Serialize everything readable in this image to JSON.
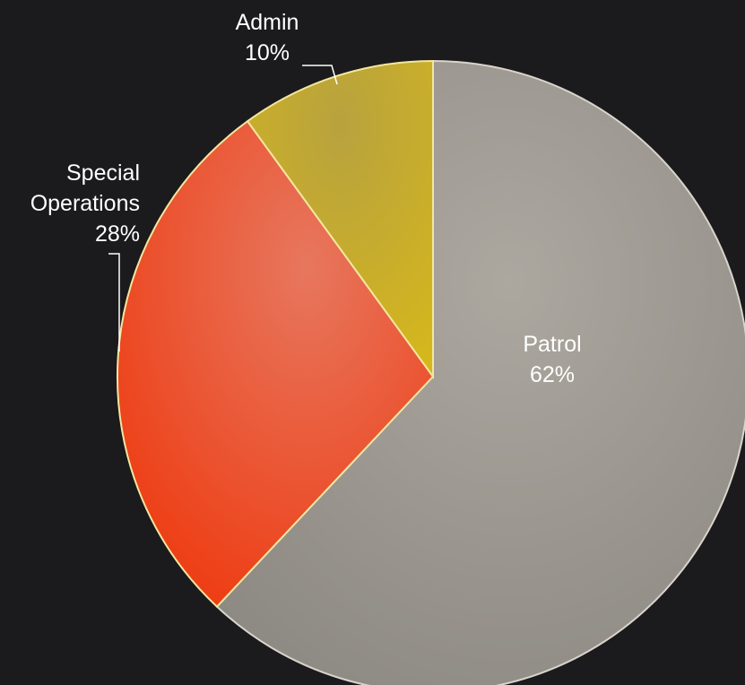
{
  "chart_data": {
    "type": "pie",
    "title": "",
    "slices": [
      {
        "name": "Patrol",
        "value": 62,
        "label_value": "62%",
        "color": "#a09b94"
      },
      {
        "name": "Special Operations",
        "value": 28,
        "label_value": "28%",
        "color": "#e3452a"
      },
      {
        "name": "Admin",
        "value": 10,
        "label_value": "10%",
        "color": "#c7a927"
      }
    ],
    "background": "#1b1a1c"
  }
}
